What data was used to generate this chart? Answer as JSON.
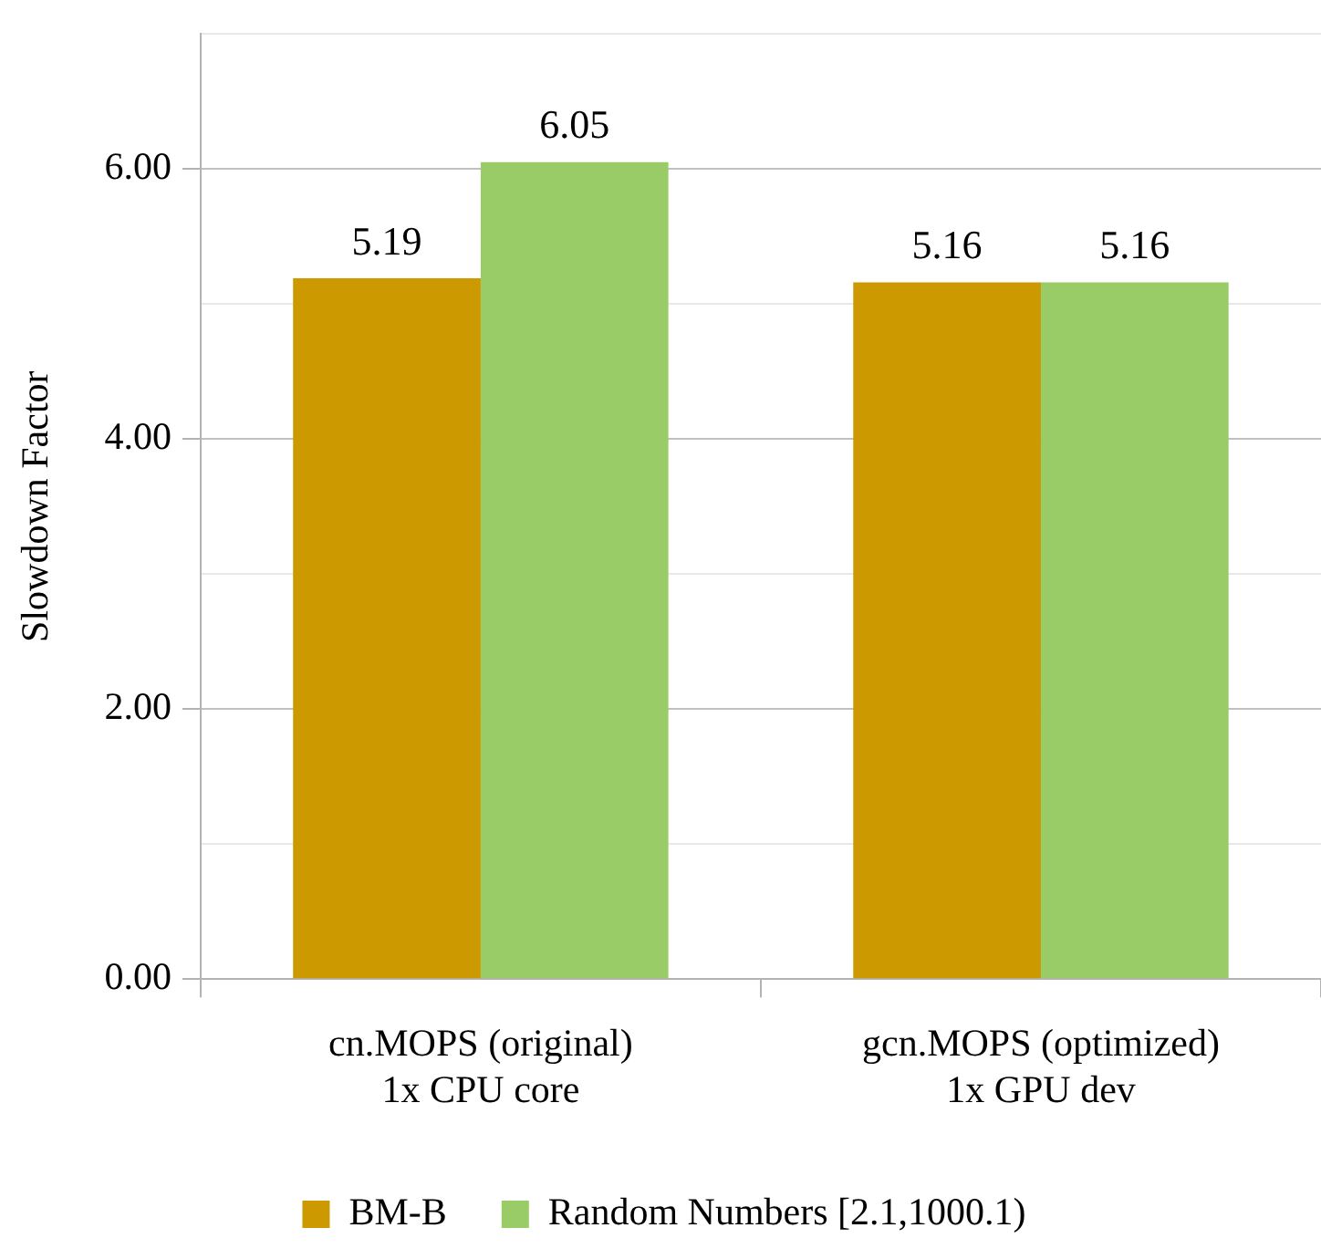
{
  "chart_data": {
    "type": "bar",
    "ylabel": "Slowdown Factor",
    "categories": [
      "cn.MOPS (original)\n1x CPU core",
      "gcn.MOPS (optimized)\n1x GPU dev"
    ],
    "series": [
      {
        "name": "BM-B",
        "color": "#cc9900",
        "values": [
          5.19,
          5.16
        ]
      },
      {
        "name": "Random Numbers [2.1,1000.1)",
        "color": "#99cc66",
        "values": [
          6.05,
          5.16
        ]
      }
    ],
    "ylim": [
      0,
      7
    ],
    "yticks": [
      {
        "value": 0,
        "label": "0.00"
      },
      {
        "value": 1,
        "label": null
      },
      {
        "value": 2,
        "label": "2.00"
      },
      {
        "value": 3,
        "label": null
      },
      {
        "value": 4,
        "label": "4.00"
      },
      {
        "value": 5,
        "label": null
      },
      {
        "value": 6,
        "label": "6.00"
      },
      {
        "value": 7,
        "label": null
      }
    ],
    "grid": "y",
    "legend": "bottom",
    "data_labels": true
  }
}
